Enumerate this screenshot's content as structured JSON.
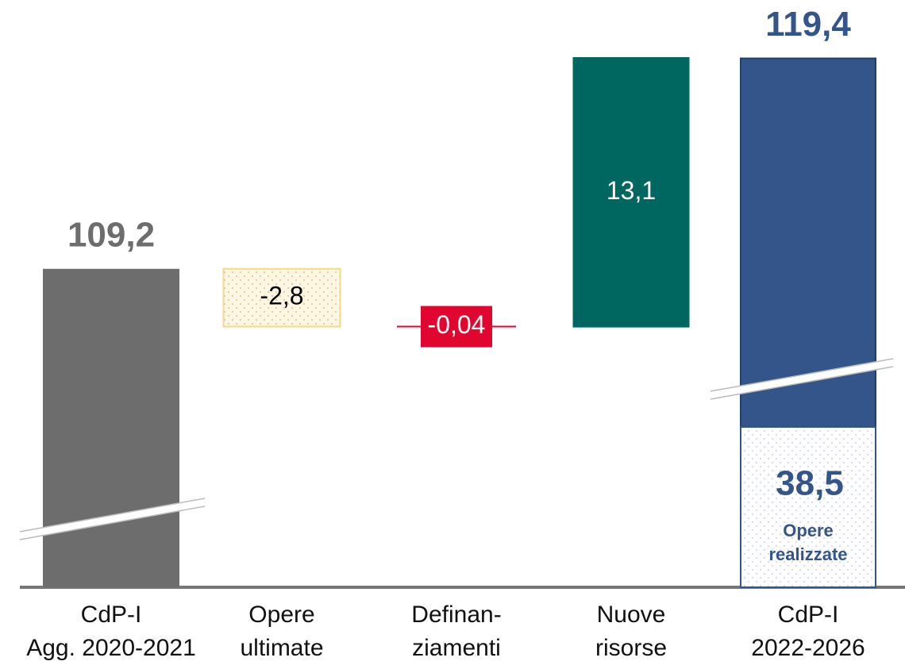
{
  "chart_data": {
    "type": "waterfall",
    "categories": [
      [
        "CdP-I",
        "Agg. 2020-2021"
      ],
      [
        "Opere",
        "ultimate"
      ],
      [
        "Definan-",
        "ziamenti"
      ],
      [
        "Nuove",
        "risorse"
      ],
      [
        "CdP-I",
        "2022-2026"
      ]
    ],
    "values": [
      109.2,
      -2.8,
      -0.04,
      13.1,
      119.4
    ],
    "value_labels": [
      "109,2",
      "-2,8",
      "-0,04",
      "13,1",
      "119,4"
    ],
    "colors": [
      "#6d6d6d",
      "#fdf3d6",
      "#e0062f",
      "#006660",
      "#33558a"
    ],
    "inner": {
      "value": 38.5,
      "value_label": "38,5",
      "label": "Opere realizzate",
      "color": "#33558a"
    }
  }
}
